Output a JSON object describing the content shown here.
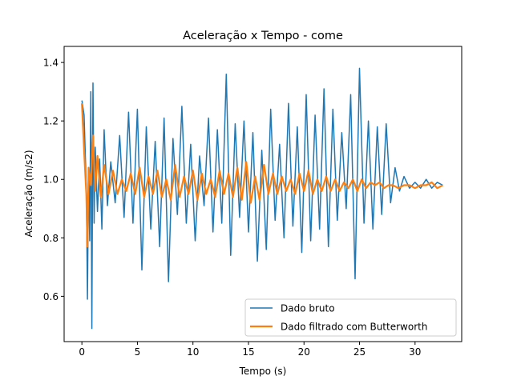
{
  "chart_data": {
    "type": "line",
    "title": "Aceleração x Tempo - come",
    "xlabel": "Tempo (s)",
    "ylabel": "Aceleração (m/s2)",
    "xlim": [
      -1.6,
      34.2
    ],
    "ylim": [
      0.445,
      1.455
    ],
    "xticks": [
      0,
      5,
      10,
      15,
      20,
      25,
      30
    ],
    "yticks": [
      0.6,
      0.8,
      1.0,
      1.2,
      1.4
    ],
    "xtick_labels": [
      "0",
      "5",
      "10",
      "15",
      "20",
      "25",
      "30"
    ],
    "ytick_labels": [
      "0.6",
      "0.8",
      "1.0",
      "1.2",
      "1.4"
    ],
    "grid": false,
    "legend_position": "lower-right",
    "series": [
      {
        "name": "Dado bruto",
        "color": "#1f77b4",
        "x": [
          0.0,
          0.2,
          0.4,
          0.5,
          0.6,
          0.7,
          0.8,
          0.9,
          1.0,
          1.1,
          1.2,
          1.4,
          1.6,
          1.8,
          2.0,
          2.3,
          2.6,
          3.0,
          3.4,
          3.8,
          4.2,
          4.6,
          5.0,
          5.4,
          5.8,
          6.2,
          6.6,
          7.0,
          7.4,
          7.8,
          8.2,
          8.6,
          9.0,
          9.4,
          9.8,
          10.2,
          10.6,
          11.0,
          11.4,
          11.8,
          12.2,
          12.6,
          13.0,
          13.4,
          13.8,
          14.2,
          14.6,
          15.0,
          15.4,
          15.8,
          16.2,
          16.6,
          17.0,
          17.4,
          17.8,
          18.2,
          18.6,
          19.0,
          19.4,
          19.8,
          20.2,
          20.6,
          21.0,
          21.4,
          21.8,
          22.2,
          22.6,
          23.0,
          23.4,
          23.8,
          24.2,
          24.6,
          25.0,
          25.4,
          25.8,
          26.2,
          26.6,
          27.0,
          27.4,
          27.8,
          28.2,
          28.6,
          29.0,
          29.5,
          30.0,
          30.5,
          31.0,
          31.5,
          32.0,
          32.5
        ],
        "y": [
          1.27,
          1.22,
          0.97,
          0.59,
          1.04,
          0.79,
          1.3,
          0.49,
          1.33,
          0.85,
          1.11,
          0.89,
          1.07,
          0.83,
          1.17,
          0.91,
          1.06,
          0.92,
          1.15,
          0.87,
          1.23,
          0.85,
          1.24,
          0.69,
          1.18,
          0.83,
          1.13,
          0.77,
          1.21,
          0.65,
          1.14,
          0.88,
          1.25,
          0.85,
          1.12,
          0.79,
          1.08,
          0.91,
          1.21,
          0.82,
          1.17,
          0.85,
          1.36,
          0.74,
          1.19,
          0.87,
          1.2,
          0.82,
          1.16,
          0.72,
          1.1,
          0.76,
          1.24,
          0.86,
          1.12,
          0.8,
          1.26,
          0.84,
          1.18,
          0.75,
          1.29,
          0.79,
          1.22,
          0.83,
          1.31,
          0.77,
          1.24,
          0.86,
          1.16,
          0.9,
          1.29,
          0.66,
          1.38,
          0.85,
          1.2,
          0.83,
          1.18,
          0.88,
          1.19,
          0.92,
          1.04,
          0.96,
          1.01,
          0.97,
          0.99,
          0.97,
          1.0,
          0.97,
          0.99,
          0.98
        ]
      },
      {
        "name": "Dado filtrado com Butterworth",
        "color": "#ff7f0e",
        "x": [
          0.0,
          0.2,
          0.4,
          0.5,
          0.6,
          0.8,
          1.0,
          1.2,
          1.4,
          1.7,
          2.0,
          2.4,
          2.8,
          3.2,
          3.6,
          4.0,
          4.4,
          4.8,
          5.2,
          5.6,
          6.0,
          6.4,
          6.8,
          7.2,
          7.6,
          8.0,
          8.4,
          8.8,
          9.2,
          9.6,
          10.0,
          10.4,
          10.8,
          11.2,
          11.6,
          12.0,
          12.4,
          12.8,
          13.2,
          13.6,
          14.0,
          14.4,
          14.8,
          15.2,
          15.6,
          16.0,
          16.4,
          16.8,
          17.2,
          17.6,
          18.0,
          18.4,
          18.8,
          19.2,
          19.6,
          20.0,
          20.4,
          20.8,
          21.2,
          21.6,
          22.0,
          22.4,
          22.8,
          23.2,
          23.6,
          24.0,
          24.4,
          24.8,
          25.2,
          25.6,
          26.0,
          26.4,
          26.8,
          27.2,
          27.6,
          28.0,
          28.5,
          29.0,
          29.5,
          30.0,
          30.5,
          31.0,
          31.5,
          32.0,
          32.5
        ],
        "y": [
          1.26,
          1.1,
          0.95,
          0.77,
          1.04,
          0.98,
          1.15,
          0.96,
          1.08,
          0.94,
          1.05,
          0.95,
          1.03,
          0.95,
          1.0,
          0.96,
          1.02,
          0.95,
          1.04,
          0.94,
          1.01,
          0.95,
          1.03,
          0.94,
          1.0,
          0.93,
          1.05,
          0.94,
          1.01,
          0.95,
          1.03,
          0.93,
          1.02,
          0.95,
          1.0,
          0.94,
          1.03,
          0.95,
          1.02,
          0.94,
          1.04,
          0.93,
          1.06,
          0.92,
          1.01,
          0.93,
          1.05,
          0.95,
          1.02,
          0.95,
          1.01,
          0.96,
          1.0,
          0.95,
          1.02,
          0.96,
          1.03,
          0.95,
          1.0,
          0.96,
          1.01,
          0.96,
          1.0,
          0.96,
          0.99,
          0.97,
          1.0,
          0.96,
          1.0,
          0.97,
          0.99,
          0.98,
          0.99,
          0.97,
          0.98,
          0.98,
          0.97,
          0.98,
          0.98,
          0.97,
          0.98,
          0.98,
          0.99,
          0.97,
          0.98
        ]
      }
    ]
  }
}
